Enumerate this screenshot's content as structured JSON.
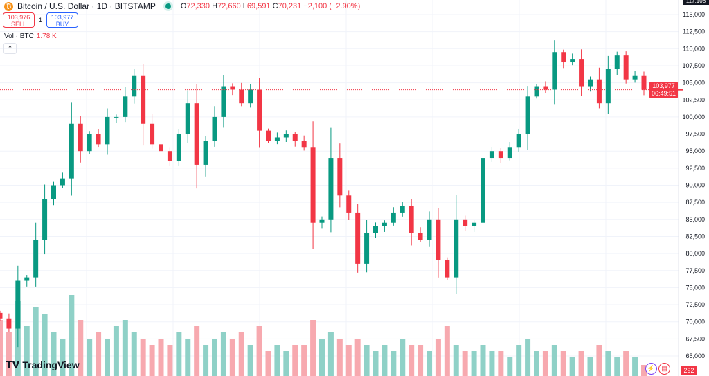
{
  "header": {
    "title": "Bitcoin / U.S. Dollar · 1D · BITSTAMP",
    "coin_icon": "bitcoin-icon",
    "market_status": "open",
    "ohlc": {
      "o_label": "O",
      "o": "72,330",
      "h_label": "H",
      "h": "72,660",
      "l_label": "L",
      "l": "69,591",
      "c_label": "C",
      "c": "70,231",
      "change": "−2,100 (−2.90%)"
    }
  },
  "trade": {
    "sell_price": "103,976",
    "sell_label": "SELL",
    "spread": "1",
    "buy_price": "103,977",
    "buy_label": "BUY"
  },
  "volume_legend": {
    "label": "Vol · BTC",
    "value": "1.78 K"
  },
  "price_tag": {
    "price": "103,977",
    "countdown": "06:49:51"
  },
  "top_tag": "117,108",
  "volume_tag": "292",
  "logo": "TradingView",
  "colors": {
    "up": "#089981",
    "down": "#f23645",
    "up_volume": "#8fd1c7",
    "down_volume": "#f7a9af"
  },
  "chart_data": {
    "type": "candlestick",
    "ylim": [
      63500,
      117000
    ],
    "y_ticks": [
      65000,
      67500,
      70000,
      72500,
      75000,
      77500,
      80000,
      82500,
      85000,
      87500,
      90000,
      92500,
      95000,
      97500,
      100000,
      102500,
      105000,
      107500,
      110000,
      112500,
      115000
    ],
    "y_tick_labels": [
      "65,000",
      "67,500",
      "70,000",
      "72,500",
      "75,000",
      "77,500",
      "80,000",
      "82,500",
      "85,000",
      "87,500",
      "90,000",
      "92,500",
      "95,000",
      "97,500",
      "100,000",
      "102,500",
      "105,000",
      "107,500",
      "110,000",
      "112,500",
      "115,000"
    ],
    "close": [
      70500,
      69000,
      76000,
      76500,
      82000,
      88000,
      90000,
      91000,
      99000,
      95000,
      97500,
      96000,
      100000,
      100000,
      103000,
      106000,
      99000,
      96000,
      95000,
      93500,
      97500,
      102000,
      93000,
      96500,
      100000,
      104500,
      104000,
      102000,
      104000,
      98000,
      96500,
      97000,
      97500,
      96500,
      95500,
      84500,
      85000,
      94000,
      88500,
      86000,
      78500,
      83000,
      84000,
      84500,
      86000,
      87000,
      83000,
      82000,
      85000,
      79000,
      76500,
      85000,
      84000,
      84500,
      94000,
      95000,
      94000,
      95500,
      97500,
      103000,
      104500,
      104000,
      109500,
      108000,
      108500,
      104500,
      105500,
      102000,
      107000,
      109000,
      105500,
      106000,
      103977
    ],
    "volume_k": [
      9,
      7,
      12,
      8,
      11,
      10,
      7,
      6,
      13,
      9,
      6,
      7,
      6,
      8,
      9,
      7,
      6,
      5,
      6,
      5,
      7,
      6,
      8,
      5,
      6,
      7,
      6,
      7,
      5,
      8,
      4,
      5,
      4,
      5,
      5,
      9,
      6,
      7,
      6,
      5,
      6,
      5,
      4,
      5,
      4,
      6,
      5,
      5,
      4,
      6,
      8,
      5,
      4,
      4,
      5,
      4,
      4,
      3,
      5,
      6,
      4,
      4,
      5,
      4,
      3,
      4,
      3,
      5,
      4,
      3,
      4,
      3,
      1.78
    ],
    "last_price": 103977,
    "grid": true
  }
}
